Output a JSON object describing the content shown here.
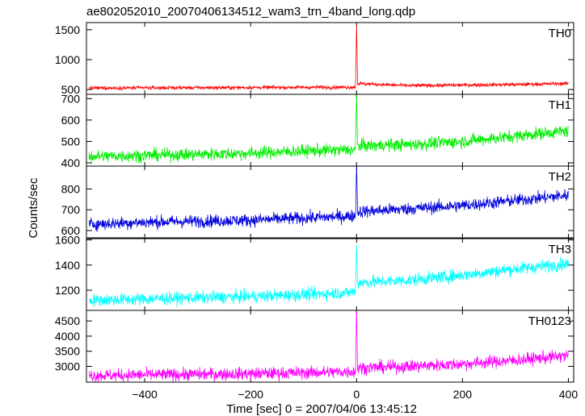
{
  "chart_data": {
    "type": "line",
    "title": "ae802052010_20070406134512_wam3_trn_4band_long.qdp",
    "xlabel": "Time [sec] 0 = 2007/04/06 13:45:12",
    "ylabel": "Counts/sec",
    "xlim": [
      -510,
      410
    ],
    "x_ticks": [
      -400,
      -200,
      0,
      200,
      400
    ],
    "x_tick_labels": [
      "−400",
      "−200",
      "0",
      "200",
      "400"
    ],
    "panels": [
      {
        "name": "TH0",
        "color": "#ff0000",
        "ylim": [
          420,
          1620
        ],
        "y_ticks": [
          500,
          1000,
          1500
        ],
        "y_tick_labels": [
          "500",
          "1000",
          "1500"
        ],
        "series": [
          {
            "x": [
              -505,
              -400,
              -300,
              -200,
              -100,
              -2,
              0,
              2,
              100,
              200,
              300,
              400
            ],
            "y": [
              525,
              528,
              531,
              534,
              537,
              540,
              1580,
              600,
              565,
              575,
              585,
              600
            ]
          }
        ]
      },
      {
        "name": "TH1",
        "color": "#00ee00",
        "ylim": [
          385,
          720
        ],
        "y_ticks": [
          400,
          500,
          600,
          700
        ],
        "y_tick_labels": [
          "400",
          "500",
          "600",
          "700"
        ],
        "series": [
          {
            "x": [
              -505,
              -400,
              -300,
              -200,
              -100,
              -2,
              0,
              2,
              100,
              200,
              300,
              400
            ],
            "y": [
              430,
              435,
              440,
              445,
              455,
              462,
              720,
              480,
              485,
              500,
              525,
              550
            ]
          }
        ]
      },
      {
        "name": "TH2",
        "color": "#0000dd",
        "ylim": [
          565,
          910
        ],
        "y_ticks": [
          600,
          700,
          800
        ],
        "y_tick_labels": [
          "600",
          "700",
          "800"
        ],
        "series": [
          {
            "x": [
              -505,
              -400,
              -300,
              -200,
              -100,
              -2,
              0,
              2,
              100,
              200,
              300,
              400
            ],
            "y": [
              630,
              640,
              645,
              650,
              660,
              670,
              910,
              690,
              705,
              720,
              745,
              770
            ]
          }
        ]
      },
      {
        "name": "TH3",
        "color": "#00ffff",
        "ylim": [
          1040,
          1610
        ],
        "y_ticks": [
          1200,
          1400,
          1600
        ],
        "y_tick_labels": [
          "1200",
          "1400",
          "1600"
        ],
        "series": [
          {
            "x": [
              -505,
              -400,
              -300,
              -200,
              -100,
              -2,
              0,
              2,
              100,
              200,
              300,
              400
            ],
            "y": [
              1120,
              1130,
              1140,
              1150,
              1165,
              1185,
              1560,
              1260,
              1280,
              1320,
              1370,
              1410
            ]
          }
        ]
      },
      {
        "name": "TH0123",
        "color": "#ff00ff",
        "ylim": [
          2480,
          4850
        ],
        "y_ticks": [
          3000,
          3500,
          4000,
          4500
        ],
        "y_tick_labels": [
          "3000",
          "3500",
          "4000",
          "4500"
        ],
        "series": [
          {
            "x": [
              -505,
              -400,
              -300,
              -200,
              -100,
              -2,
              0,
              2,
              100,
              200,
              300,
              400
            ],
            "y": [
              2700,
              2720,
              2740,
              2760,
              2790,
              2830,
              4850,
              2950,
              3000,
              3080,
              3200,
              3360
            ]
          }
        ]
      }
    ],
    "grid": false,
    "legend": "none"
  }
}
